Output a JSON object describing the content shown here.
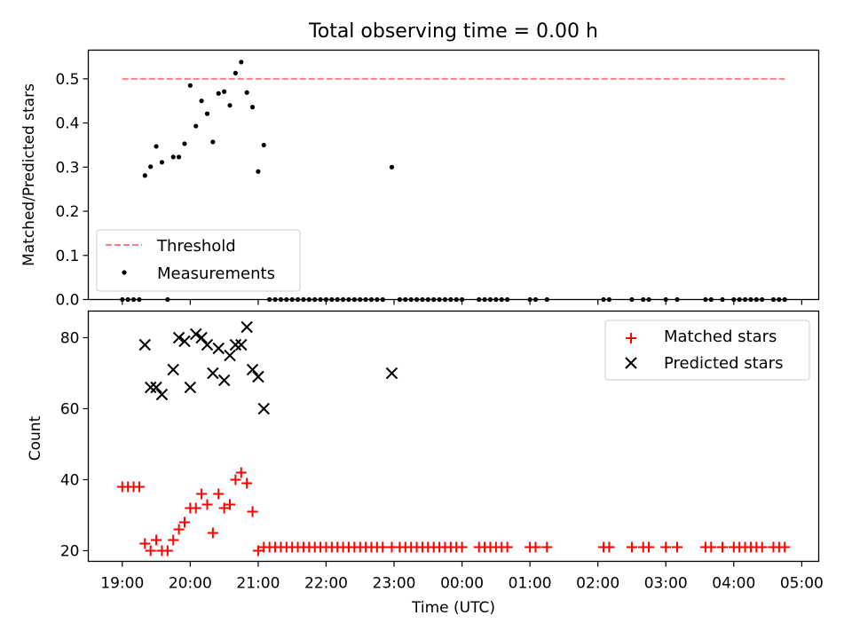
{
  "figure": {
    "title": "Total observing time = 0.00 h"
  },
  "chart_data": [
    {
      "type": "scatter",
      "panel": "top",
      "ylabel": "Matched/Predicted stars",
      "xlim": [
        "18:30",
        "05:15"
      ],
      "ylim": [
        0,
        0.565
      ],
      "yticks": [
        "0.0",
        "0.1",
        "0.2",
        "0.3",
        "0.4",
        "0.5"
      ],
      "threshold": {
        "name": "Threshold",
        "value": 0.5,
        "x_from": "19:00",
        "x_to": "04:45",
        "color": "#ff7f7f",
        "style": "dashed"
      },
      "series": [
        {
          "name": "Measurements",
          "color": "#000000",
          "marker": "dot",
          "points": [
            [
              "19:00",
              0
            ],
            [
              "19:05",
              0
            ],
            [
              "19:10",
              0
            ],
            [
              "19:15",
              0
            ],
            [
              "19:20",
              0.281
            ],
            [
              "19:25",
              0.301
            ],
            [
              "19:30",
              0.347
            ],
            [
              "19:35",
              0.311
            ],
            [
              "19:40",
              0
            ],
            [
              "19:45",
              0.323
            ],
            [
              "19:50",
              0.323
            ],
            [
              "19:55",
              0.353
            ],
            [
              "20:00",
              0.485
            ],
            [
              "20:05",
              0.393
            ],
            [
              "20:10",
              0.45
            ],
            [
              "20:15",
              0.421
            ],
            [
              "20:20",
              0.357
            ],
            [
              "20:25",
              0.467
            ],
            [
              "20:30",
              0.471
            ],
            [
              "20:35",
              0.44
            ],
            [
              "20:40",
              0.513
            ],
            [
              "20:45",
              0.538
            ],
            [
              "20:50",
              0.469
            ],
            [
              "20:55",
              0.436
            ],
            [
              "21:00",
              0.29
            ],
            [
              "21:05",
              0.35
            ],
            [
              "21:10",
              0
            ],
            [
              "21:15",
              0
            ],
            [
              "21:20",
              0
            ],
            [
              "21:25",
              0
            ],
            [
              "21:30",
              0
            ],
            [
              "21:35",
              0
            ],
            [
              "21:40",
              0
            ],
            [
              "21:45",
              0
            ],
            [
              "21:50",
              0
            ],
            [
              "21:55",
              0
            ],
            [
              "22:00",
              0
            ],
            [
              "22:05",
              0
            ],
            [
              "22:10",
              0
            ],
            [
              "22:15",
              0
            ],
            [
              "22:20",
              0
            ],
            [
              "22:25",
              0
            ],
            [
              "22:30",
              0
            ],
            [
              "22:35",
              0
            ],
            [
              "22:40",
              0
            ],
            [
              "22:45",
              0
            ],
            [
              "22:50",
              0
            ],
            [
              "22:58",
              0.3
            ],
            [
              "23:05",
              0
            ],
            [
              "23:10",
              0
            ],
            [
              "23:15",
              0
            ],
            [
              "23:20",
              0
            ],
            [
              "23:25",
              0
            ],
            [
              "23:30",
              0
            ],
            [
              "23:35",
              0
            ],
            [
              "23:40",
              0
            ],
            [
              "23:45",
              0
            ],
            [
              "23:50",
              0
            ],
            [
              "23:55",
              0
            ],
            [
              "00:00",
              0
            ],
            [
              "00:15",
              0
            ],
            [
              "00:20",
              0
            ],
            [
              "00:25",
              0
            ],
            [
              "00:30",
              0
            ],
            [
              "00:35",
              0
            ],
            [
              "00:40",
              0
            ],
            [
              "01:00",
              0
            ],
            [
              "01:05",
              0
            ],
            [
              "01:15",
              0
            ],
            [
              "02:05",
              0
            ],
            [
              "02:10",
              0
            ],
            [
              "02:30",
              0
            ],
            [
              "02:40",
              0
            ],
            [
              "02:45",
              0
            ],
            [
              "03:00",
              0
            ],
            [
              "03:10",
              0
            ],
            [
              "03:35",
              0
            ],
            [
              "03:40",
              0
            ],
            [
              "03:50",
              0
            ],
            [
              "04:00",
              0
            ],
            [
              "04:05",
              0
            ],
            [
              "04:10",
              0
            ],
            [
              "04:15",
              0
            ],
            [
              "04:20",
              0
            ],
            [
              "04:25",
              0
            ],
            [
              "04:35",
              0
            ],
            [
              "04:40",
              0
            ],
            [
              "04:45",
              0
            ]
          ]
        }
      ],
      "legend": {
        "position": "lower-left"
      }
    },
    {
      "type": "scatter",
      "panel": "bottom",
      "xlabel": "Time (UTC)",
      "ylabel": "Count",
      "xlim": [
        "18:30",
        "05:15"
      ],
      "ylim": [
        17,
        87.5
      ],
      "yticks": [
        "20",
        "40",
        "60",
        "80"
      ],
      "xticks": [
        "19:00",
        "20:00",
        "21:00",
        "22:00",
        "23:00",
        "00:00",
        "01:00",
        "02:00",
        "03:00",
        "04:00",
        "05:00"
      ],
      "series": [
        {
          "name": "Matched stars",
          "color": "#ff0000",
          "marker": "plus",
          "points": [
            [
              "19:00",
              38
            ],
            [
              "19:05",
              38
            ],
            [
              "19:10",
              38
            ],
            [
              "19:15",
              38
            ],
            [
              "19:20",
              22
            ],
            [
              "19:25",
              20
            ],
            [
              "19:30",
              23
            ],
            [
              "19:35",
              20
            ],
            [
              "19:40",
              20
            ],
            [
              "19:45",
              23
            ],
            [
              "19:50",
              26
            ],
            [
              "19:55",
              28
            ],
            [
              "20:00",
              32
            ],
            [
              "20:05",
              32
            ],
            [
              "20:10",
              36
            ],
            [
              "20:15",
              33
            ],
            [
              "20:20",
              25
            ],
            [
              "20:25",
              36
            ],
            [
              "20:30",
              32
            ],
            [
              "20:35",
              33
            ],
            [
              "20:40",
              40
            ],
            [
              "20:45",
              42
            ],
            [
              "20:50",
              39
            ],
            [
              "20:55",
              31
            ],
            [
              "21:00",
              20
            ],
            [
              "21:05",
              21
            ],
            [
              "21:10",
              21
            ],
            [
              "21:15",
              21
            ],
            [
              "21:20",
              21
            ],
            [
              "21:25",
              21
            ],
            [
              "21:30",
              21
            ],
            [
              "21:35",
              21
            ],
            [
              "21:40",
              21
            ],
            [
              "21:45",
              21
            ],
            [
              "21:50",
              21
            ],
            [
              "21:55",
              21
            ],
            [
              "22:00",
              21
            ],
            [
              "22:05",
              21
            ],
            [
              "22:10",
              21
            ],
            [
              "22:15",
              21
            ],
            [
              "22:20",
              21
            ],
            [
              "22:25",
              21
            ],
            [
              "22:30",
              21
            ],
            [
              "22:35",
              21
            ],
            [
              "22:40",
              21
            ],
            [
              "22:45",
              21
            ],
            [
              "22:50",
              21
            ],
            [
              "22:58",
              21
            ],
            [
              "23:05",
              21
            ],
            [
              "23:10",
              21
            ],
            [
              "23:15",
              21
            ],
            [
              "23:20",
              21
            ],
            [
              "23:25",
              21
            ],
            [
              "23:30",
              21
            ],
            [
              "23:35",
              21
            ],
            [
              "23:40",
              21
            ],
            [
              "23:45",
              21
            ],
            [
              "23:50",
              21
            ],
            [
              "23:55",
              21
            ],
            [
              "00:00",
              21
            ],
            [
              "00:15",
              21
            ],
            [
              "00:20",
              21
            ],
            [
              "00:25",
              21
            ],
            [
              "00:30",
              21
            ],
            [
              "00:35",
              21
            ],
            [
              "00:40",
              21
            ],
            [
              "01:00",
              21
            ],
            [
              "01:05",
              21
            ],
            [
              "01:15",
              21
            ],
            [
              "02:05",
              21
            ],
            [
              "02:10",
              21
            ],
            [
              "02:30",
              21
            ],
            [
              "02:40",
              21
            ],
            [
              "02:45",
              21
            ],
            [
              "03:00",
              21
            ],
            [
              "03:10",
              21
            ],
            [
              "03:35",
              21
            ],
            [
              "03:40",
              21
            ],
            [
              "03:50",
              21
            ],
            [
              "04:00",
              21
            ],
            [
              "04:05",
              21
            ],
            [
              "04:10",
              21
            ],
            [
              "04:15",
              21
            ],
            [
              "04:20",
              21
            ],
            [
              "04:25",
              21
            ],
            [
              "04:35",
              21
            ],
            [
              "04:40",
              21
            ],
            [
              "04:45",
              21
            ]
          ]
        },
        {
          "name": "Predicted stars",
          "color": "#000000",
          "marker": "x",
          "points": [
            [
              "19:20",
              78
            ],
            [
              "19:25",
              66
            ],
            [
              "19:30",
              66
            ],
            [
              "19:35",
              64
            ],
            [
              "19:45",
              71
            ],
            [
              "19:50",
              80
            ],
            [
              "19:55",
              79
            ],
            [
              "20:00",
              66
            ],
            [
              "20:05",
              81
            ],
            [
              "20:10",
              80
            ],
            [
              "20:15",
              78
            ],
            [
              "20:20",
              70
            ],
            [
              "20:25",
              77
            ],
            [
              "20:30",
              68
            ],
            [
              "20:35",
              75
            ],
            [
              "20:40",
              78
            ],
            [
              "20:45",
              78
            ],
            [
              "20:50",
              83
            ],
            [
              "20:55",
              71
            ],
            [
              "21:00",
              69
            ],
            [
              "21:05",
              60
            ],
            [
              "22:58",
              70
            ]
          ]
        }
      ],
      "legend": {
        "position": "upper-right"
      }
    }
  ]
}
